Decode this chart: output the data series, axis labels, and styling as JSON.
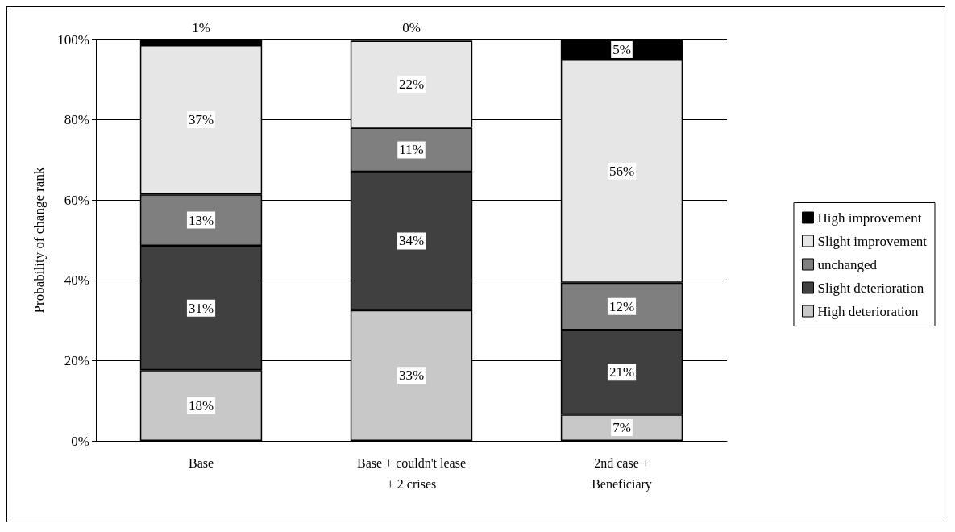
{
  "chart_data": {
    "type": "bar",
    "stacked": true,
    "ylabel": "Probability of change rank",
    "categories": [
      "Base",
      "Base + couldn't lease\n+ 2 crises",
      "2nd case +\nBeneficiary"
    ],
    "series": [
      {
        "name": "High deterioration",
        "color": "#c8c8c8",
        "values": [
          17.6,
          32.6,
          6.6
        ],
        "value_labels": [
          "18%",
          "33%",
          "7%"
        ]
      },
      {
        "name": "Slight deterioration",
        "color": "#404040",
        "values": [
          31,
          34.4,
          21
        ],
        "value_labels": [
          "31%",
          "34%",
          "21%"
        ]
      },
      {
        "name": "unchanged",
        "color": "#7f7f7f",
        "values": [
          12.8,
          11,
          11.8
        ],
        "value_labels": [
          "13%",
          "11%",
          "12%"
        ]
      },
      {
        "name": "Slight improvement",
        "color": "#e6e6e6",
        "values": [
          37.2,
          21.7,
          55.6
        ],
        "value_labels": [
          "37%",
          "22%",
          "56%"
        ]
      },
      {
        "name": "High improvement",
        "color": "#000000",
        "values": [
          1.4,
          0.3,
          5
        ],
        "value_labels": [
          "1%",
          "0%",
          "5%"
        ]
      }
    ],
    "ylim": [
      0,
      100
    ],
    "yticks": [
      {
        "value": 0,
        "label": "0%"
      },
      {
        "value": 20,
        "label": "20%"
      },
      {
        "value": 40,
        "label": "40%"
      },
      {
        "value": 60,
        "label": "60%"
      },
      {
        "value": 80,
        "label": "80%"
      },
      {
        "value": 100,
        "label": "100%"
      }
    ],
    "grid": "y",
    "legend": "right"
  }
}
